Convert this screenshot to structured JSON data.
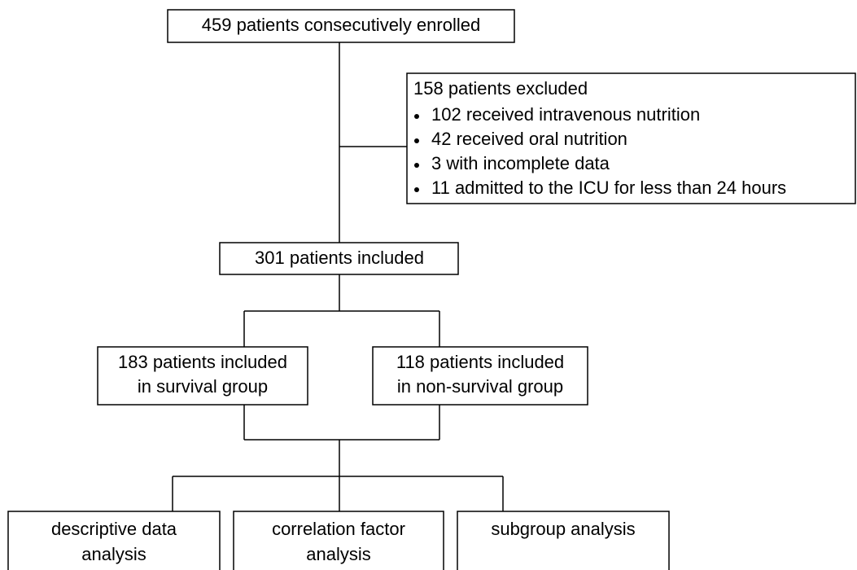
{
  "nodes": [
    {
      "label": "459 patients consecutively enrolled"
    },
    {
      "title": "158 patients excluded",
      "items": [
        "102 received intravenous nutrition",
        "42 received oral nutrition",
        "3 with incomplete data",
        "11 admitted to the ICU for less than 24 hours"
      ]
    },
    {
      "label": "301 patients included"
    },
    {
      "lines": [
        "183 patients included",
        "in survival group"
      ]
    },
    {
      "lines": [
        "118 patients included",
        "in non-survival group"
      ]
    },
    {
      "lines": [
        "descriptive data",
        "analysis"
      ]
    },
    {
      "lines": [
        "correlation factor",
        "analysis"
      ]
    },
    {
      "lines": [
        "subgroup analysis"
      ]
    }
  ]
}
